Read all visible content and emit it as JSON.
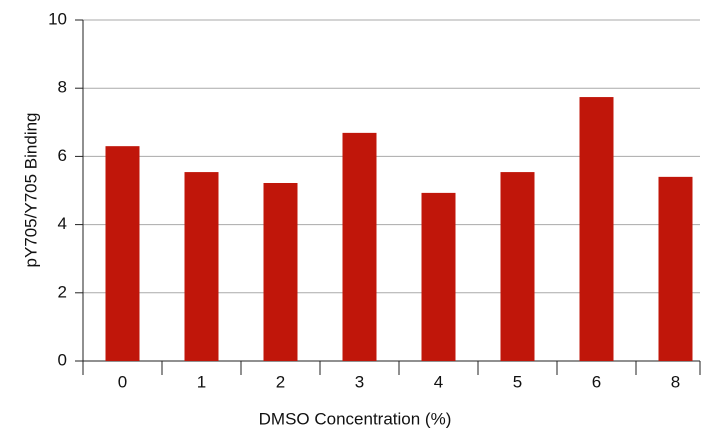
{
  "chart_data": {
    "type": "bar",
    "x_label": "DMSO Concentration (%)",
    "y_label": "pY705/Y705 Binding",
    "categories": [
      "0",
      "1",
      "2",
      "3",
      "4",
      "5",
      "6",
      "8"
    ],
    "values": [
      6.3,
      5.54,
      5.22,
      6.69,
      4.93,
      5.54,
      7.74,
      5.4
    ],
    "color": "#c0160a",
    "ylim": [
      0,
      10
    ],
    "yticks": [
      0,
      2,
      4,
      6,
      8,
      10
    ],
    "grid": true
  }
}
